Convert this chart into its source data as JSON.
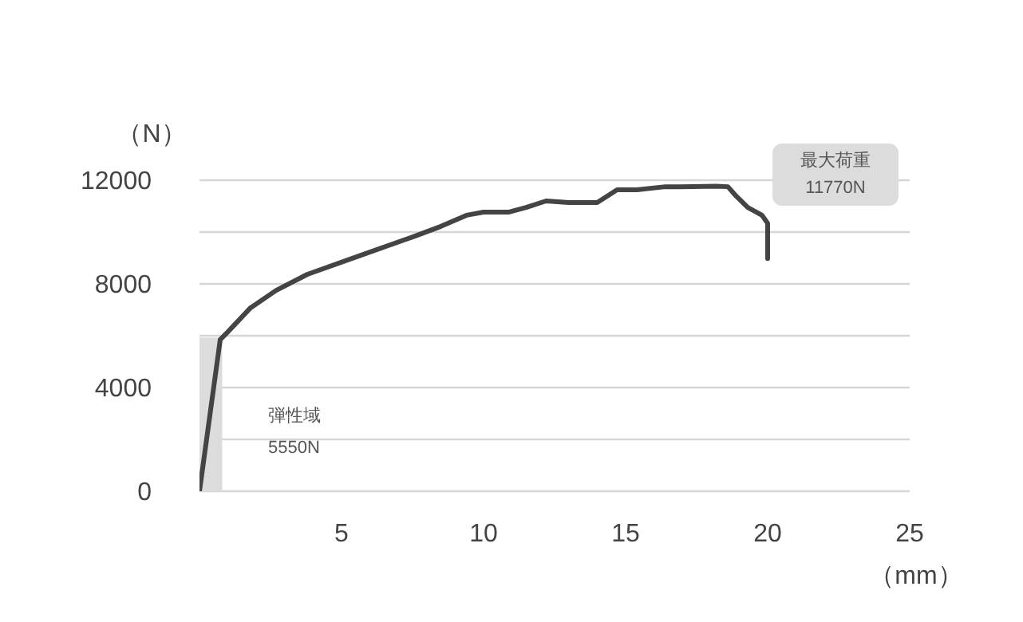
{
  "chart_data": {
    "type": "line",
    "xlabel": "（mm）",
    "ylabel": "（N）",
    "x": [
      0,
      0.73,
      1.0,
      1.8,
      2.7,
      3.8,
      5.7,
      7.6,
      8.5,
      9.4,
      10.0,
      10.9,
      11.5,
      12.2,
      13.0,
      14.0,
      14.7,
      15.4,
      16.4,
      16.9,
      18.2,
      18.6,
      18.9,
      19.3,
      19.8,
      20.0,
      20.0
    ],
    "series": [
      {
        "color": "#444444",
        "values": [
          0,
          5850,
          6150,
          7080,
          7750,
          8370,
          9110,
          9850,
          10220,
          10650,
          10770,
          10770,
          10950,
          11200,
          11140,
          11140,
          11630,
          11630,
          11750,
          11750,
          11770,
          11750,
          11380,
          10950,
          10650,
          10340,
          8980
        ]
      }
    ],
    "xlim": [
      0,
      25
    ],
    "xticks": [
      5,
      10,
      15,
      20,
      25
    ],
    "ylim": [
      0,
      12000
    ],
    "yticks": [
      0,
      {
        "value": 2000,
        "label": null
      },
      4000,
      {
        "value": 6000,
        "label": null
      },
      8000,
      {
        "value": 10000,
        "label": null
      },
      12000
    ],
    "grid": "y",
    "bands": [
      {
        "axis": "x",
        "from": 0,
        "to": 0.8,
        "color": "#dcdcdc"
      }
    ],
    "annotations": [
      "弾性域\n5550N",
      "最大荷重\n11770N"
    ]
  }
}
